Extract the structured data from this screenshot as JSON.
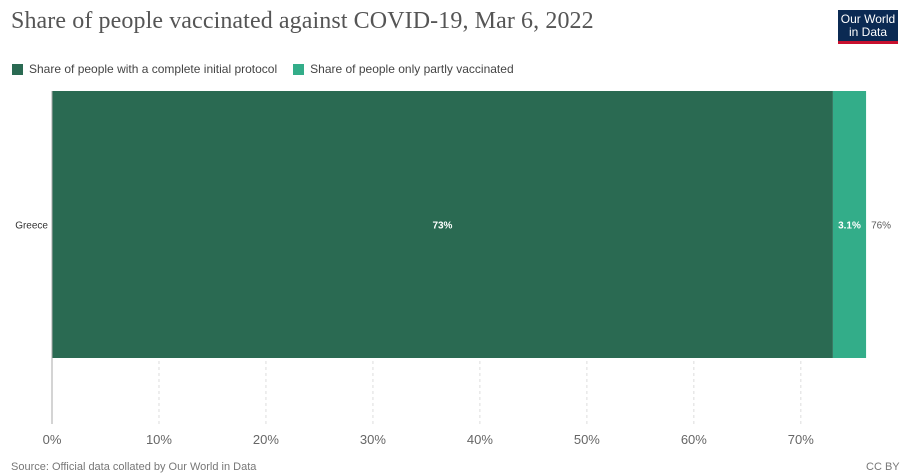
{
  "title": "Share of people vaccinated against COVID-19, Mar 6, 2022",
  "logo": {
    "line1": "Our World",
    "line2": "in Data"
  },
  "legend": [
    {
      "label": "Share of people with a complete initial protocol",
      "color": "#2a6a52"
    },
    {
      "label": "Share of people only partly vaccinated",
      "color": "#33ad89"
    }
  ],
  "footer": {
    "source": "Source: Official data collated by Our World in Data",
    "license": "CC BY"
  },
  "chart_data": {
    "type": "bar",
    "orientation": "horizontal",
    "stacked": true,
    "categories": [
      "Greece"
    ],
    "series": [
      {
        "name": "Share of people with a complete initial protocol",
        "values": [
          73
        ],
        "labels": [
          "73%"
        ],
        "color": "#2a6a52"
      },
      {
        "name": "Share of people only partly vaccinated",
        "values": [
          3.1
        ],
        "labels": [
          "3.1%"
        ],
        "color": "#33ad89"
      }
    ],
    "totals": [
      "76%"
    ],
    "xlim": [
      0,
      76
    ],
    "xticks": [
      0,
      10,
      20,
      30,
      40,
      50,
      60,
      70
    ],
    "xtick_labels": [
      "0%",
      "10%",
      "20%",
      "30%",
      "40%",
      "50%",
      "60%",
      "70%"
    ],
    "grid": true
  }
}
